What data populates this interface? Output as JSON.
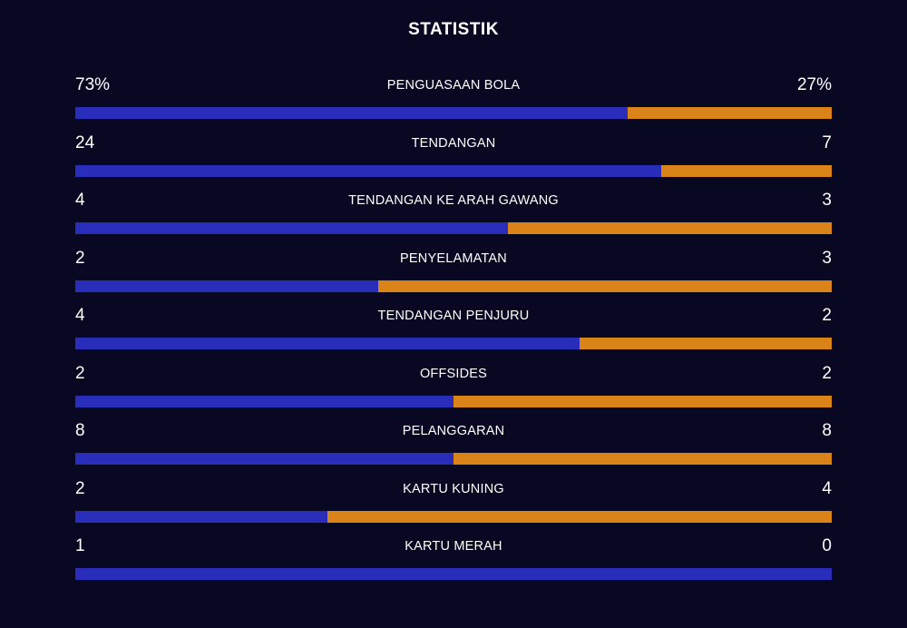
{
  "title": "STATISTIK",
  "colors": {
    "background": "#090822",
    "home": "#2a2cba",
    "away": "#d98318"
  },
  "stats": [
    {
      "label": "PENGUASAAN BOLA",
      "home": "73%",
      "away": "27%",
      "home_value": 73,
      "away_value": 27
    },
    {
      "label": "TENDANGAN",
      "home": "24",
      "away": "7",
      "home_value": 24,
      "away_value": 7
    },
    {
      "label": "TENDANGAN KE ARAH GAWANG",
      "home": "4",
      "away": "3",
      "home_value": 4,
      "away_value": 3
    },
    {
      "label": "PENYELAMATAN",
      "home": "2",
      "away": "3",
      "home_value": 2,
      "away_value": 3
    },
    {
      "label": "TENDANGAN PENJURU",
      "home": "4",
      "away": "2",
      "home_value": 4,
      "away_value": 2
    },
    {
      "label": "OFFSIDES",
      "home": "2",
      "away": "2",
      "home_value": 2,
      "away_value": 2
    },
    {
      "label": "PELANGGARAN",
      "home": "8",
      "away": "8",
      "home_value": 8,
      "away_value": 8
    },
    {
      "label": "KARTU KUNING",
      "home": "2",
      "away": "4",
      "home_value": 2,
      "away_value": 4
    },
    {
      "label": "KARTU MERAH",
      "home": "1",
      "away": "0",
      "home_value": 1,
      "away_value": 0
    }
  ]
}
